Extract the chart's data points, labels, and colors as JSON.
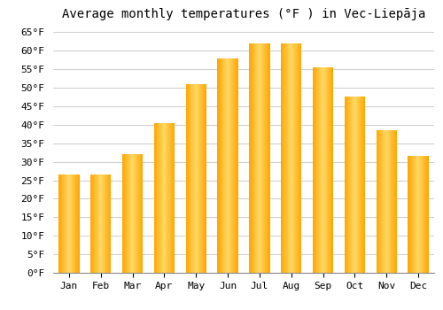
{
  "title": "Average monthly temperatures (°F ) in Vec-Liepāja",
  "months": [
    "Jan",
    "Feb",
    "Mar",
    "Apr",
    "May",
    "Jun",
    "Jul",
    "Aug",
    "Sep",
    "Oct",
    "Nov",
    "Dec"
  ],
  "values": [
    26.5,
    26.5,
    32.0,
    40.5,
    51.0,
    58.0,
    62.0,
    62.0,
    55.5,
    47.5,
    38.5,
    31.5
  ],
  "bar_color_center": "#FFD966",
  "bar_color_edge": "#FFA500",
  "ylim": [
    0,
    67
  ],
  "ytick_step": 5,
  "background_color": "#FFFFFF",
  "grid_color": "#CCCCCC",
  "title_fontsize": 10,
  "tick_fontsize": 8,
  "font_family": "monospace"
}
